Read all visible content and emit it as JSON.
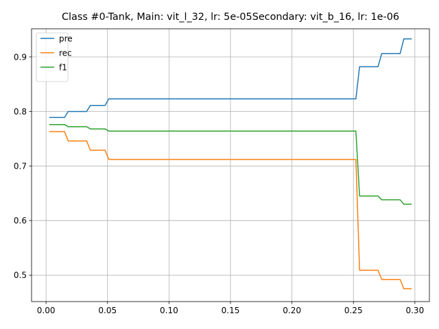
{
  "chart_data": {
    "type": "line",
    "title": "Class #0-Tank, Main: vit_l_32, lr: 5e-05Secondary: vit_b_16, lr: 1e-06",
    "xlabel": "",
    "ylabel": "",
    "xlim": [
      -0.0118,
      0.3118
    ],
    "ylim": [
      0.4515,
      0.9515
    ],
    "x_ticks": [
      0.0,
      0.05,
      0.1,
      0.15,
      0.2,
      0.25,
      0.3
    ],
    "x_tick_labels": [
      "0.00",
      "0.05",
      "0.10",
      "0.15",
      "0.20",
      "0.25",
      "0.30"
    ],
    "y_ticks": [
      0.5,
      0.6,
      0.7,
      0.8,
      0.9
    ],
    "y_tick_labels": [
      "0.5",
      "0.6",
      "0.7",
      "0.8",
      "0.9"
    ],
    "grid": true,
    "legend_position": "top-left",
    "series": [
      {
        "name": "pre",
        "color": "#1f77b4",
        "points": [
          [
            0.003,
            0.789
          ],
          [
            0.015,
            0.789
          ],
          [
            0.018,
            0.8
          ],
          [
            0.033,
            0.8
          ],
          [
            0.036,
            0.811
          ],
          [
            0.048,
            0.811
          ],
          [
            0.051,
            0.823
          ],
          [
            0.252,
            0.823
          ],
          [
            0.255,
            0.882
          ],
          [
            0.27,
            0.882
          ],
          [
            0.273,
            0.906
          ],
          [
            0.288,
            0.906
          ],
          [
            0.291,
            0.933
          ],
          [
            0.297,
            0.933
          ]
        ]
      },
      {
        "name": "rec",
        "color": "#ff7f0e",
        "points": [
          [
            0.003,
            0.763
          ],
          [
            0.015,
            0.763
          ],
          [
            0.018,
            0.746
          ],
          [
            0.033,
            0.746
          ],
          [
            0.036,
            0.729
          ],
          [
            0.048,
            0.729
          ],
          [
            0.051,
            0.712
          ],
          [
            0.252,
            0.712
          ],
          [
            0.255,
            0.509
          ],
          [
            0.27,
            0.509
          ],
          [
            0.273,
            0.492
          ],
          [
            0.288,
            0.492
          ],
          [
            0.291,
            0.475
          ],
          [
            0.297,
            0.475
          ]
        ]
      },
      {
        "name": "f1",
        "color": "#2ca02c",
        "points": [
          [
            0.003,
            0.776
          ],
          [
            0.015,
            0.776
          ],
          [
            0.018,
            0.772
          ],
          [
            0.033,
            0.772
          ],
          [
            0.036,
            0.768
          ],
          [
            0.048,
            0.768
          ],
          [
            0.051,
            0.764
          ],
          [
            0.252,
            0.764
          ],
          [
            0.255,
            0.645
          ],
          [
            0.27,
            0.645
          ],
          [
            0.273,
            0.638
          ],
          [
            0.288,
            0.638
          ],
          [
            0.291,
            0.63
          ],
          [
            0.297,
            0.63
          ]
        ]
      }
    ]
  }
}
